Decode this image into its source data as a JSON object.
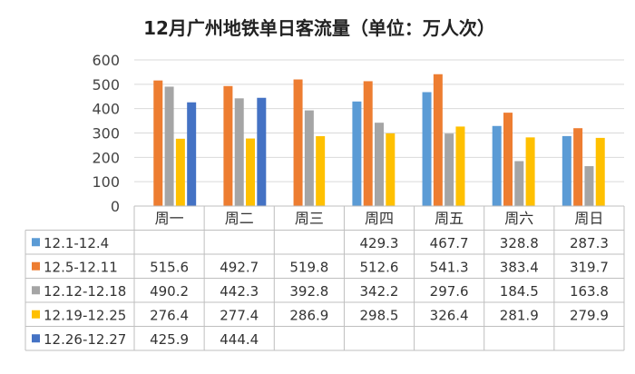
{
  "chart_data": {
    "type": "bar",
    "title": "12月广州地铁单日客流量（单位：万人次）",
    "categories": [
      "周一",
      "周二",
      "周三",
      "周四",
      "周五",
      "周六",
      "周日"
    ],
    "ylim": [
      0,
      600
    ],
    "yticks": [
      "0",
      "100",
      "200",
      "300",
      "400",
      "500",
      "600"
    ],
    "grid": true,
    "legend": "data-table",
    "series": [
      {
        "name": "12.1-12.4",
        "color": "#5B9BD5",
        "values": [
          null,
          null,
          null,
          429.3,
          467.7,
          328.8,
          287.3
        ]
      },
      {
        "name": "12.5-12.11",
        "color": "#ED7D31",
        "values": [
          515.6,
          492.7,
          519.8,
          512.6,
          541.3,
          383.4,
          319.7
        ]
      },
      {
        "name": "12.12-12.18",
        "color": "#A5A5A5",
        "values": [
          490.2,
          442.3,
          392.8,
          342.2,
          297.6,
          184.5,
          163.8
        ]
      },
      {
        "name": "12.19-12.25",
        "color": "#FFC000",
        "values": [
          276.4,
          277.4,
          286.9,
          298.5,
          326.4,
          281.9,
          279.9
        ]
      },
      {
        "name": "12.26-12.27",
        "color": "#4472C4",
        "values": [
          425.9,
          444.4,
          null,
          null,
          null,
          null,
          null
        ]
      }
    ],
    "table": [
      [
        "",
        "",
        "",
        "429.3",
        "467.7",
        "328.8",
        "287.3"
      ],
      [
        "515.6",
        "492.7",
        "519.8",
        "512.6",
        "541.3",
        "383.4",
        "319.7"
      ],
      [
        "490.2",
        "442.3",
        "392.8",
        "342.2",
        "297.6",
        "184.5",
        "163.8"
      ],
      [
        "276.4",
        "277.4",
        "286.9",
        "298.5",
        "326.4",
        "281.9",
        "279.9"
      ],
      [
        "425.9",
        "444.4",
        "",
        "",
        "",
        "",
        ""
      ]
    ]
  }
}
